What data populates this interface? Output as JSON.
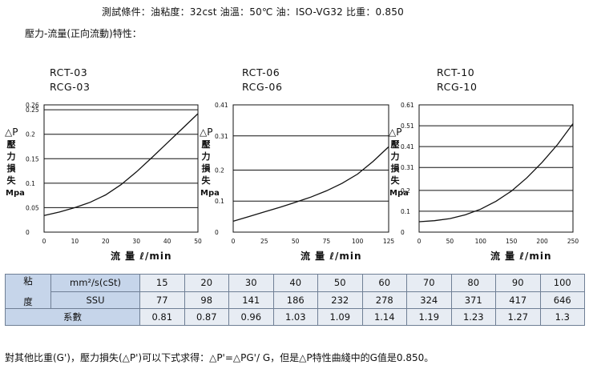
{
  "conditions": "測試條件：油粘度：32cst  油溫：50℃  油：ISO-VG32  比重：0.850",
  "section_title": "壓力-流量(正向流動)特性：",
  "y_axis": {
    "delta": "△P",
    "chars": [
      "壓",
      "力",
      "損",
      "失"
    ],
    "unit": "Mpa"
  },
  "x_axis_label": "流 量  ℓ/min",
  "chart_data": [
    {
      "type": "line",
      "models": [
        "RCT-03",
        "RCG-03"
      ],
      "ylabel": "△P 壓力損失 Mpa",
      "xlabel": "流 量 ℓ/min",
      "xlim": [
        0,
        50
      ],
      "ylim": [
        0,
        0.26
      ],
      "x_ticks": [
        0,
        10,
        20,
        30,
        40,
        50
      ],
      "y_ticks": [
        "0",
        "0.05",
        "0.1",
        "0.15",
        "0.2",
        "0.25"
      ],
      "y_tick_values": [
        0,
        0.05,
        0.1,
        0.15,
        0.2,
        0.25
      ],
      "y_top_label": "0.26",
      "grid": "horizontal",
      "series": [
        {
          "x": [
            0,
            5,
            10,
            15,
            20,
            25,
            30,
            35,
            40,
            45,
            50
          ],
          "y": [
            0.034,
            0.041,
            0.05,
            0.061,
            0.076,
            0.097,
            0.123,
            0.152,
            0.182,
            0.212,
            0.242
          ]
        }
      ]
    },
    {
      "type": "line",
      "models": [
        "RCT-06",
        "RCG-06"
      ],
      "ylabel": "△P 壓力損失 Mpa",
      "xlabel": "流 量 ℓ/min",
      "xlim": [
        0,
        125
      ],
      "ylim": [
        0,
        0.41
      ],
      "x_ticks": [
        0,
        25,
        50,
        75,
        100,
        125
      ],
      "y_ticks": [
        "0",
        "0.1",
        "0.2",
        "0.31"
      ],
      "y_tick_values": [
        0,
        0.1,
        0.2,
        0.31
      ],
      "y_top_label": "0.41",
      "grid": "horizontal",
      "series": [
        {
          "x": [
            0,
            12.5,
            25,
            37.5,
            50,
            62.5,
            75,
            87.5,
            100,
            112.5,
            125
          ],
          "y": [
            0.035,
            0.05,
            0.065,
            0.08,
            0.096,
            0.113,
            0.133,
            0.157,
            0.187,
            0.228,
            0.275
          ]
        }
      ]
    },
    {
      "type": "line",
      "models": [
        "RCT-10",
        "RCG-10"
      ],
      "ylabel": "△P 壓力損失 Mpa",
      "xlabel": "流 量 ℓ/min",
      "xlim": [
        0,
        250
      ],
      "ylim": [
        0,
        0.61
      ],
      "x_ticks": [
        0,
        50,
        100,
        150,
        200,
        250
      ],
      "y_ticks": [
        "0",
        "0.1",
        "0.2",
        "0.31",
        "0.41",
        "0.51"
      ],
      "y_tick_values": [
        0,
        0.1,
        0.2,
        0.31,
        0.41,
        0.51
      ],
      "y_top_label": "0.61",
      "grid": "horizontal",
      "series": [
        {
          "x": [
            0,
            25,
            50,
            75,
            100,
            125,
            150,
            175,
            200,
            225,
            250
          ],
          "y": [
            0.05,
            0.055,
            0.065,
            0.083,
            0.11,
            0.148,
            0.197,
            0.26,
            0.335,
            0.42,
            0.52
          ]
        }
      ]
    }
  ],
  "table": {
    "viscosity_label": "粘度",
    "viscosity_chars": [
      "粘",
      "度"
    ],
    "row1_unit": "mm²/s(cSt)",
    "row2_unit": "SSU",
    "row3_label": "系數",
    "cst": [
      "15",
      "20",
      "30",
      "40",
      "50",
      "60",
      "70",
      "80",
      "90",
      "100"
    ],
    "ssu": [
      "77",
      "98",
      "141",
      "186",
      "232",
      "278",
      "324",
      "371",
      "417",
      "646"
    ],
    "coef": [
      "0.81",
      "0.87",
      "0.96",
      "1.03",
      "1.09",
      "1.14",
      "1.19",
      "1.23",
      "1.27",
      "1.3"
    ]
  },
  "footer": "對其他比重(G')，壓力損失(△P')可以下式求得：△P'=△PG'/ G，但是△P特性曲綫中的G值是0.850。"
}
